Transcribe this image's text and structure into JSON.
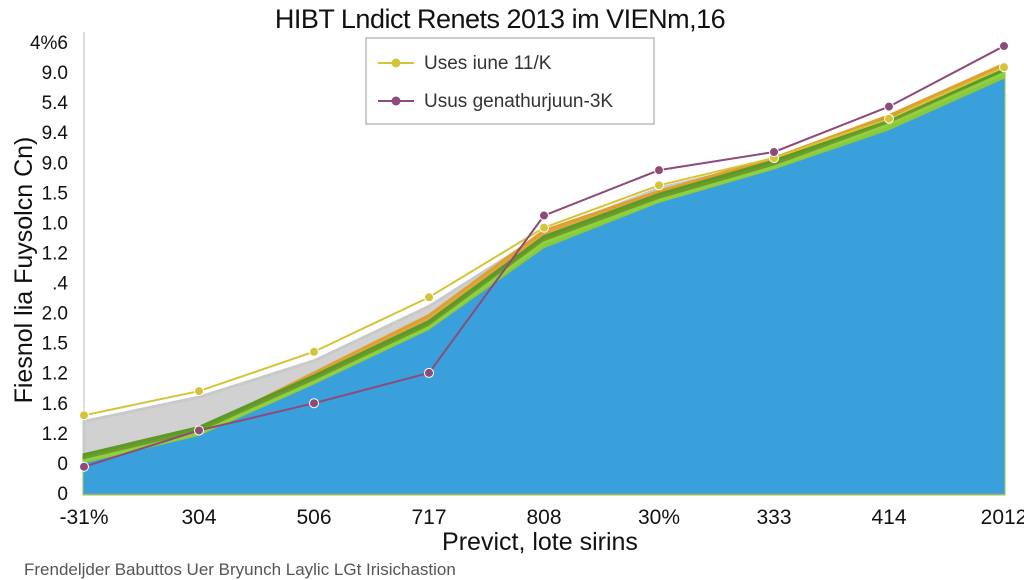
{
  "title": "HIBT  Lndict Renets 2013 im VIENm,16",
  "source_note": "Frendeljder Babuttos Uer Bryunch Laylic LGt Irisichastion",
  "chart_data": {
    "type": "area",
    "title": "HIBT  Lndict Renets 2013 im VIENm,16",
    "xlabel": "Previct, lote sirins",
    "ylabel": "Fiesnol lia Fuysolcn Cn)",
    "x_tick_labels": [
      "-31%",
      "304",
      "506",
      "717",
      "808",
      "30%",
      "333",
      "414",
      "2012"
    ],
    "y_tick_labels": [
      "4%6",
      "9.0",
      "5.4",
      "9.4",
      "9.0",
      "1.5",
      "1.0",
      "1.2",
      ".4",
      "2.0",
      "1.5",
      "1.2",
      "1.6",
      "1.2",
      "0",
      "0"
    ],
    "y_range": [
      0,
      15
    ],
    "grid": false,
    "legend_position": "top",
    "series": [
      {
        "name": "Uses iune 11/K",
        "color": "#d4c43a",
        "marker": "circle",
        "values": [
          2.6,
          3.4,
          4.7,
          6.5,
          8.8,
          10.2,
          11.1,
          12.4,
          14.1
        ]
      },
      {
        "name": "Usus genathurjuun-3K",
        "color": "#8e4a78",
        "marker": "circle",
        "values": [
          0.9,
          2.1,
          3.0,
          4.0,
          9.2,
          10.7,
          11.3,
          12.8,
          14.8
        ]
      }
    ],
    "background_series": [
      {
        "color": "#c9c9c9",
        "values": [
          2.4,
          3.2,
          4.4,
          6.2,
          8.6,
          10.1,
          11.0,
          12.3,
          14.0
        ]
      },
      {
        "color": "#e0a030",
        "values": [
          1.3,
          2.1,
          4.0,
          5.9,
          8.7,
          10.0,
          11.1,
          12.5,
          14.2
        ]
      },
      {
        "color": "#5a9a28",
        "values": [
          1.3,
          2.2,
          3.9,
          5.7,
          8.5,
          9.9,
          11.0,
          12.4,
          14.0
        ]
      },
      {
        "color": "#8fd040",
        "values": [
          1.1,
          2.0,
          3.7,
          5.5,
          8.3,
          9.7,
          10.8,
          12.2,
          13.9
        ]
      },
      {
        "color": "#3aa0dc",
        "values": [
          1.0,
          1.9,
          3.6,
          5.4,
          8.1,
          9.6,
          10.7,
          12.0,
          13.7
        ]
      }
    ]
  }
}
